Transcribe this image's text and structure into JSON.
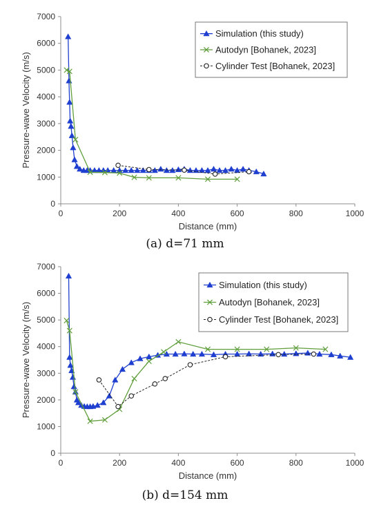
{
  "chart_data": [
    {
      "type": "line",
      "caption": "(a) d=71 mm",
      "xlabel": "Distance (mm)",
      "ylabel": "Pressure-wave Velocity  (m/s)",
      "xlim": [
        0,
        1000
      ],
      "ylim": [
        0,
        7000
      ],
      "x_ticks": [
        "0",
        "200",
        "400",
        "600",
        "800",
        "1000"
      ],
      "y_ticks": [
        "0",
        "1000",
        "2000",
        "3000",
        "4000",
        "5000",
        "6000",
        "7000"
      ],
      "grid": false,
      "legend_position": "top-right",
      "series": [
        {
          "name": "Simulation (this study)",
          "color": "#1f3fd0",
          "marker": "triangle",
          "line": "solid",
          "x": [
            25,
            28,
            30,
            32,
            35,
            38,
            42,
            47,
            55,
            65,
            78,
            90,
            100,
            115,
            130,
            145,
            160,
            180,
            200,
            220,
            240,
            260,
            280,
            300,
            320,
            340,
            360,
            380,
            400,
            420,
            440,
            460,
            480,
            500,
            520,
            540,
            560,
            580,
            600,
            620,
            640,
            665,
            690
          ],
          "y": [
            6250,
            4600,
            3800,
            3100,
            2900,
            2550,
            2100,
            1650,
            1400,
            1300,
            1250,
            1250,
            1250,
            1250,
            1250,
            1250,
            1250,
            1250,
            1250,
            1250,
            1250,
            1250,
            1250,
            1250,
            1250,
            1300,
            1250,
            1250,
            1280,
            1300,
            1250,
            1250,
            1250,
            1250,
            1300,
            1250,
            1250,
            1300,
            1250,
            1300,
            1250,
            1200,
            1120
          ]
        },
        {
          "name": "Autodyn [Bohanek, 2023]",
          "color": "#5f9e3a",
          "marker": "x",
          "line": "solid",
          "x": [
            20,
            30,
            50,
            100,
            150,
            200,
            250,
            300,
            400,
            500,
            600
          ],
          "y": [
            5000,
            4950,
            2400,
            1180,
            1170,
            1150,
            990,
            970,
            970,
            920,
            920
          ]
        },
        {
          "name": "Cylinder Test [Bohanek, 2023]",
          "color": "#222222",
          "marker": "circle",
          "line": "dashed",
          "x": [
            195,
            300,
            420,
            525,
            640
          ],
          "y": [
            1440,
            1280,
            1260,
            1110,
            1200
          ]
        }
      ]
    },
    {
      "type": "line",
      "caption": "(b) d=154 mm",
      "xlabel": "Distance (mm)",
      "ylabel": "Pressure-wave Velocity  (m/s)",
      "xlim": [
        0,
        1000
      ],
      "ylim": [
        0,
        7000
      ],
      "x_ticks": [
        "0",
        "200",
        "400",
        "600",
        "800",
        "1000"
      ],
      "y_ticks": [
        "0",
        "1000",
        "2000",
        "3000",
        "4000",
        "5000",
        "6000",
        "7000"
      ],
      "grid": false,
      "legend_position": "top-right",
      "series": [
        {
          "name": "Simulation (this study)",
          "color": "#1f3fd0",
          "marker": "triangle",
          "line": "solid",
          "x": [
            27,
            30,
            33,
            37,
            41,
            45,
            50,
            55,
            60,
            70,
            80,
            90,
            100,
            110,
            125,
            145,
            165,
            185,
            210,
            240,
            270,
            300,
            330,
            360,
            390,
            420,
            450,
            480,
            520,
            560,
            600,
            640,
            680,
            720,
            760,
            800,
            840,
            880,
            920,
            950,
            985
          ],
          "y": [
            6650,
            3600,
            3300,
            3100,
            2850,
            2500,
            2300,
            2000,
            1900,
            1800,
            1760,
            1750,
            1750,
            1760,
            1800,
            1900,
            2150,
            2750,
            3150,
            3400,
            3550,
            3620,
            3680,
            3720,
            3720,
            3730,
            3720,
            3720,
            3700,
            3720,
            3720,
            3730,
            3720,
            3730,
            3720,
            3740,
            3760,
            3720,
            3700,
            3650,
            3600
          ]
        },
        {
          "name": "Autodyn [Bohanek, 2023]",
          "color": "#5f9e3a",
          "marker": "x",
          "line": "solid",
          "x": [
            20,
            30,
            50,
            100,
            150,
            200,
            250,
            300,
            350,
            400,
            500,
            600,
            700,
            800,
            900
          ],
          "y": [
            4980,
            4600,
            2300,
            1200,
            1250,
            1650,
            2800,
            3450,
            3800,
            4180,
            3900,
            3900,
            3900,
            3950,
            3900
          ]
        },
        {
          "name": "Cylinder Test [Bohanek, 2023]",
          "color": "#222222",
          "marker": "circle",
          "line": "dashed",
          "x": [
            130,
            195,
            240,
            320,
            355,
            440,
            560,
            740,
            860
          ],
          "y": [
            2750,
            1750,
            2150,
            2600,
            2800,
            3320,
            3620,
            3700,
            3720
          ]
        }
      ]
    }
  ]
}
